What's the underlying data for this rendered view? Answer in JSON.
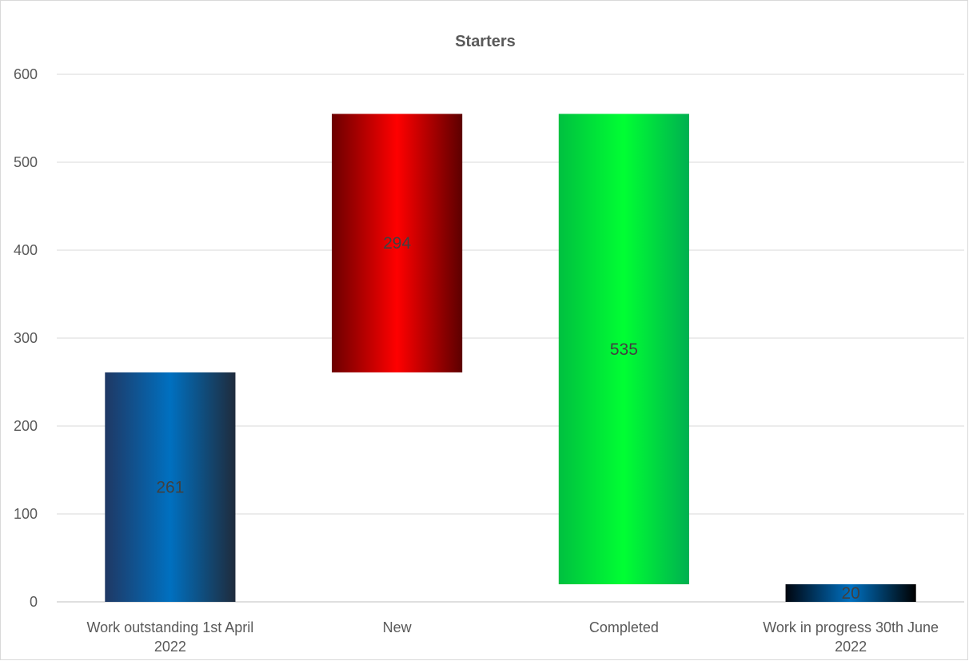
{
  "chart_data": {
    "type": "bar",
    "subtype": "waterfall",
    "title": "Starters",
    "xlabel": "",
    "ylabel": "",
    "ylim": [
      0,
      600
    ],
    "yticks": [
      0,
      100,
      200,
      300,
      400,
      500,
      600
    ],
    "grid": true,
    "legend": "none",
    "categories": [
      "Work outstanding 1st April 2022",
      "New",
      "Completed",
      "Work in progress 30th June 2022"
    ],
    "values": [
      261,
      294,
      535,
      20
    ],
    "bar_ranges": [
      [
        0,
        261
      ],
      [
        261,
        555
      ],
      [
        20,
        555
      ],
      [
        0,
        20
      ]
    ],
    "data_labels": [
      "261",
      "294",
      "535",
      "20"
    ],
    "colors": [
      "#0070c0",
      "#ff0000",
      "#00ff33",
      "#0070c0"
    ]
  }
}
